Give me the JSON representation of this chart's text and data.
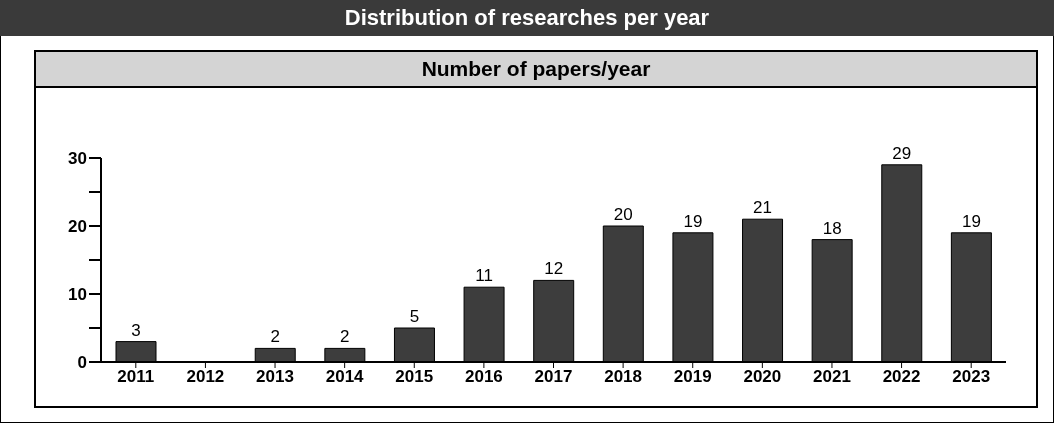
{
  "chart_data": {
    "type": "bar",
    "title": "Distribution of researches per year",
    "subtitle": "Number of papers/year",
    "categories": [
      "2011",
      "2012",
      "2013",
      "2014",
      "2015",
      "2016",
      "2017",
      "2018",
      "2019",
      "2020",
      "2021",
      "2022",
      "2023"
    ],
    "values": [
      3,
      null,
      2,
      2,
      5,
      11,
      12,
      20,
      19,
      21,
      18,
      29,
      19
    ],
    "color": "#3d3d3d",
    "ylim": [
      0,
      30
    ],
    "yticks": [
      0,
      {
        "value": 5,
        "label": null
      },
      10,
      {
        "value": 15,
        "label": null
      },
      20,
      {
        "value": 25,
        "label": null
      },
      30
    ],
    "data_labels": true,
    "grid": false,
    "legend": false
  }
}
